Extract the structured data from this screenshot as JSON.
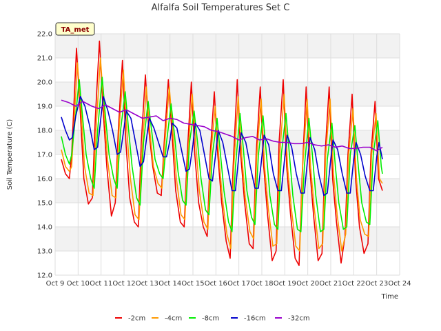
{
  "chart_data": {
    "type": "line",
    "title": "Alfalfa Soil Temperatures Set C",
    "xlabel": "Time",
    "ylabel": "Soil Temperature (C)",
    "badge": "TA_met",
    "ylim": [
      12.0,
      22.0
    ],
    "xlim": [
      9,
      24
    ],
    "yticks": [
      "12.0",
      "13.0",
      "14.0",
      "15.0",
      "16.0",
      "17.0",
      "18.0",
      "19.0",
      "20.0",
      "21.0",
      "22.0"
    ],
    "xticks": [
      "Oct 9",
      "Oct 10",
      "Oct 11",
      "Oct 12",
      "Oct 13",
      "Oct 14",
      "Oct 15",
      "Oct 16",
      "Oct 17",
      "Oct 18",
      "Oct 19",
      "Oct 20",
      "Oct 21",
      "Oct 22",
      "Oct 23",
      "Oct 24"
    ],
    "grid": true,
    "legend": "bottom",
    "series": [
      {
        "name": "-2cm",
        "color": "#ee0000",
        "x": [
          9.27,
          9.45,
          9.62,
          9.72,
          9.93,
          10.08,
          10.25,
          10.45,
          10.62,
          10.75,
          10.93,
          11.08,
          11.25,
          11.45,
          11.62,
          11.75,
          11.93,
          12.08,
          12.25,
          12.45,
          12.62,
          12.75,
          12.93,
          13.08,
          13.25,
          13.45,
          13.62,
          13.75,
          13.93,
          14.08,
          14.25,
          14.45,
          14.62,
          14.75,
          14.93,
          15.08,
          15.25,
          15.45,
          15.62,
          15.75,
          15.93,
          16.08,
          16.25,
          16.45,
          16.62,
          16.75,
          16.93,
          17.08,
          17.25,
          17.45,
          17.62,
          17.75,
          17.93,
          18.08,
          18.25,
          18.45,
          18.62,
          18.75,
          18.93,
          19.08,
          19.25,
          19.45,
          19.62,
          19.75,
          19.93,
          20.08,
          20.25,
          20.45,
          20.62,
          20.75,
          20.93,
          21.08,
          21.25,
          21.45,
          21.62,
          21.75,
          21.93,
          22.08,
          22.25,
          22.45,
          22.62,
          22.75,
          22.93,
          23.08,
          23.25
        ],
        "y": [
          16.8,
          16.2,
          16.0,
          17.0,
          21.4,
          19.0,
          16.0,
          14.95,
          15.2,
          18.5,
          21.7,
          19.0,
          16.5,
          14.45,
          15.0,
          18.0,
          20.9,
          17.5,
          15.2,
          14.2,
          14.0,
          17.5,
          20.3,
          18.0,
          16.5,
          15.4,
          15.3,
          17.5,
          20.1,
          18.0,
          15.5,
          14.2,
          14.0,
          17.0,
          20.0,
          17.0,
          15.0,
          14.0,
          13.6,
          17.0,
          19.6,
          17.0,
          15.0,
          13.4,
          12.7,
          16.5,
          20.1,
          17.0,
          15.0,
          13.3,
          13.1,
          17.0,
          19.8,
          16.5,
          14.5,
          12.6,
          13.0,
          17.5,
          20.1,
          16.5,
          14.5,
          12.7,
          12.4,
          16.0,
          19.8,
          16.5,
          14.5,
          12.6,
          12.9,
          17.0,
          19.8,
          16.0,
          14.2,
          12.5,
          13.6,
          17.0,
          19.5,
          16.0,
          14.0,
          12.9,
          13.3,
          17.0,
          19.2,
          16.0,
          15.5
        ]
      },
      {
        "name": "-4cm",
        "color": "#ff9900",
        "x": [
          9.27,
          9.45,
          9.62,
          9.72,
          9.97,
          10.12,
          10.28,
          10.48,
          10.65,
          10.78,
          10.97,
          11.12,
          11.28,
          11.48,
          11.65,
          11.78,
          11.97,
          12.12,
          12.28,
          12.48,
          12.65,
          12.78,
          12.97,
          13.12,
          13.28,
          13.48,
          13.65,
          13.78,
          13.97,
          14.12,
          14.28,
          14.48,
          14.65,
          14.78,
          14.97,
          15.12,
          15.28,
          15.48,
          15.65,
          15.78,
          15.97,
          16.12,
          16.28,
          16.48,
          16.65,
          16.78,
          16.97,
          17.12,
          17.28,
          17.48,
          17.65,
          17.78,
          17.97,
          18.12,
          18.28,
          18.48,
          18.65,
          18.78,
          18.97,
          19.12,
          19.28,
          19.48,
          19.65,
          19.78,
          19.97,
          20.12,
          20.28,
          20.48,
          20.65,
          20.78,
          20.97,
          21.12,
          21.28,
          21.48,
          21.65,
          21.78,
          21.97,
          22.12,
          22.28,
          22.48,
          22.65,
          22.78,
          22.97,
          23.12,
          23.25
        ],
        "y": [
          17.2,
          16.5,
          16.3,
          16.5,
          20.8,
          19.0,
          16.5,
          15.4,
          15.3,
          18.0,
          21.0,
          19.0,
          16.8,
          15.3,
          15.2,
          18.0,
          20.5,
          18.0,
          16.0,
          14.5,
          14.3,
          17.0,
          19.8,
          18.0,
          16.5,
          15.8,
          15.6,
          17.5,
          19.8,
          18.0,
          16.0,
          14.5,
          14.3,
          17.0,
          19.5,
          17.5,
          15.5,
          14.2,
          13.9,
          17.0,
          19.0,
          17.0,
          15.2,
          13.7,
          13.1,
          16.5,
          19.4,
          17.0,
          15.2,
          13.8,
          13.5,
          17.0,
          19.3,
          16.5,
          14.8,
          13.2,
          13.3,
          17.0,
          19.5,
          16.5,
          14.8,
          13.2,
          13.0,
          16.5,
          19.3,
          16.5,
          14.8,
          13.1,
          13.3,
          17.0,
          19.3,
          16.2,
          14.5,
          13.0,
          13.7,
          17.0,
          18.9,
          16.0,
          14.3,
          13.7,
          13.6,
          17.0,
          18.7,
          16.0,
          15.8
        ]
      },
      {
        "name": "-8cm",
        "color": "#00ee00",
        "x": [
          9.27,
          9.45,
          9.62,
          9.72,
          10.05,
          10.2,
          10.35,
          10.55,
          10.7,
          10.85,
          11.05,
          11.2,
          11.35,
          11.55,
          11.7,
          11.85,
          12.05,
          12.2,
          12.35,
          12.55,
          12.7,
          12.85,
          13.05,
          13.2,
          13.35,
          13.55,
          13.7,
          13.85,
          14.05,
          14.2,
          14.35,
          14.55,
          14.7,
          14.85,
          15.05,
          15.2,
          15.35,
          15.55,
          15.7,
          15.85,
          16.05,
          16.2,
          16.35,
          16.55,
          16.7,
          16.85,
          17.05,
          17.2,
          17.35,
          17.55,
          17.7,
          17.85,
          18.05,
          18.2,
          18.35,
          18.55,
          18.7,
          18.85,
          19.05,
          19.2,
          19.35,
          19.55,
          19.7,
          19.85,
          20.05,
          20.2,
          20.35,
          20.55,
          20.7,
          20.85,
          21.05,
          21.2,
          21.35,
          21.55,
          21.7,
          21.85,
          22.05,
          22.2,
          22.35,
          22.55,
          22.7,
          22.85,
          23.05,
          23.2,
          23.25
        ],
        "y": [
          17.75,
          17.0,
          16.6,
          17.0,
          20.1,
          18.5,
          17.0,
          16.0,
          15.6,
          18.0,
          20.2,
          18.5,
          17.0,
          16.0,
          15.6,
          18.0,
          19.6,
          18.0,
          16.5,
          15.2,
          14.9,
          17.5,
          19.2,
          18.0,
          16.8,
          16.2,
          16.0,
          17.5,
          19.1,
          17.8,
          16.3,
          15.1,
          14.9,
          17.5,
          18.8,
          17.5,
          16.0,
          14.7,
          14.5,
          17.0,
          18.5,
          17.0,
          15.5,
          14.2,
          13.8,
          16.5,
          18.7,
          17.2,
          15.5,
          14.4,
          14.1,
          17.0,
          18.6,
          17.0,
          15.3,
          14.1,
          13.9,
          17.0,
          18.7,
          17.0,
          15.3,
          13.9,
          13.8,
          16.5,
          18.5,
          17.0,
          15.3,
          13.8,
          13.9,
          16.8,
          18.3,
          16.5,
          15.0,
          13.9,
          14.0,
          17.0,
          18.2,
          16.5,
          15.0,
          14.2,
          14.1,
          17.0,
          18.4,
          16.5,
          16.2
        ]
      },
      {
        "name": "-16cm",
        "color": "#0000cc",
        "x": [
          9.27,
          9.45,
          9.62,
          9.75,
          9.9,
          10.1,
          10.3,
          10.5,
          10.7,
          10.85,
          11.0,
          11.1,
          11.3,
          11.5,
          11.7,
          11.85,
          12.0,
          12.1,
          12.3,
          12.5,
          12.7,
          12.85,
          13.0,
          13.1,
          13.3,
          13.5,
          13.7,
          13.85,
          14.0,
          14.1,
          14.3,
          14.5,
          14.7,
          14.85,
          15.0,
          15.1,
          15.3,
          15.5,
          15.7,
          15.85,
          16.0,
          16.1,
          16.3,
          16.5,
          16.7,
          16.85,
          17.0,
          17.1,
          17.3,
          17.5,
          17.7,
          17.85,
          18.0,
          18.1,
          18.3,
          18.5,
          18.7,
          18.85,
          19.0,
          19.1,
          19.3,
          19.5,
          19.7,
          19.85,
          20.0,
          20.1,
          20.3,
          20.5,
          20.7,
          20.85,
          21.0,
          21.1,
          21.3,
          21.5,
          21.7,
          21.85,
          22.0,
          22.1,
          22.3,
          22.5,
          22.7,
          22.85,
          23.0,
          23.1,
          23.25
        ],
        "y": [
          18.55,
          18.0,
          17.6,
          17.7,
          18.6,
          19.4,
          19.0,
          18.2,
          17.2,
          17.3,
          18.6,
          19.4,
          18.8,
          18.0,
          17.0,
          17.1,
          18.1,
          18.8,
          18.5,
          17.5,
          16.5,
          16.7,
          17.8,
          18.5,
          18.1,
          17.5,
          16.9,
          16.9,
          17.6,
          18.3,
          18.1,
          17.2,
          16.3,
          16.4,
          17.4,
          18.3,
          18.0,
          17.0,
          16.0,
          15.9,
          17.1,
          18.0,
          17.5,
          16.5,
          15.5,
          15.5,
          17.0,
          17.9,
          17.5,
          16.5,
          15.6,
          15.6,
          16.9,
          17.8,
          17.4,
          16.2,
          15.5,
          15.5,
          16.9,
          17.8,
          17.3,
          16.2,
          15.4,
          15.4,
          16.9,
          17.7,
          17.2,
          16.1,
          15.3,
          15.4,
          16.8,
          17.6,
          17.2,
          16.2,
          15.4,
          15.4,
          16.8,
          17.5,
          17.0,
          16.1,
          15.5,
          15.5,
          16.9,
          17.5,
          16.8
        ]
      },
      {
        "name": "-32cm",
        "color": "#9900cc",
        "x": [
          9.27,
          9.6,
          9.9,
          10.2,
          10.6,
          10.9,
          11.2,
          11.5,
          11.8,
          12.1,
          12.4,
          12.8,
          13.1,
          13.4,
          13.7,
          14.0,
          14.3,
          14.6,
          14.9,
          15.2,
          15.5,
          15.8,
          16.1,
          16.4,
          16.7,
          17.0,
          17.3,
          17.6,
          17.9,
          18.2,
          18.5,
          18.8,
          19.1,
          19.4,
          19.7,
          20.0,
          20.3,
          20.6,
          20.9,
          21.2,
          21.5,
          21.8,
          22.1,
          22.4,
          22.7,
          23.0,
          23.25
        ],
        "y": [
          19.25,
          19.15,
          19.0,
          19.2,
          19.0,
          18.9,
          19.05,
          18.9,
          18.75,
          18.85,
          18.7,
          18.5,
          18.55,
          18.6,
          18.4,
          18.5,
          18.45,
          18.3,
          18.25,
          18.2,
          18.15,
          18.0,
          17.95,
          17.85,
          17.75,
          17.6,
          17.7,
          17.75,
          17.6,
          17.65,
          17.55,
          17.5,
          17.5,
          17.45,
          17.45,
          17.5,
          17.4,
          17.35,
          17.4,
          17.3,
          17.35,
          17.25,
          17.25,
          17.3,
          17.3,
          17.15,
          17.3
        ]
      }
    ]
  }
}
